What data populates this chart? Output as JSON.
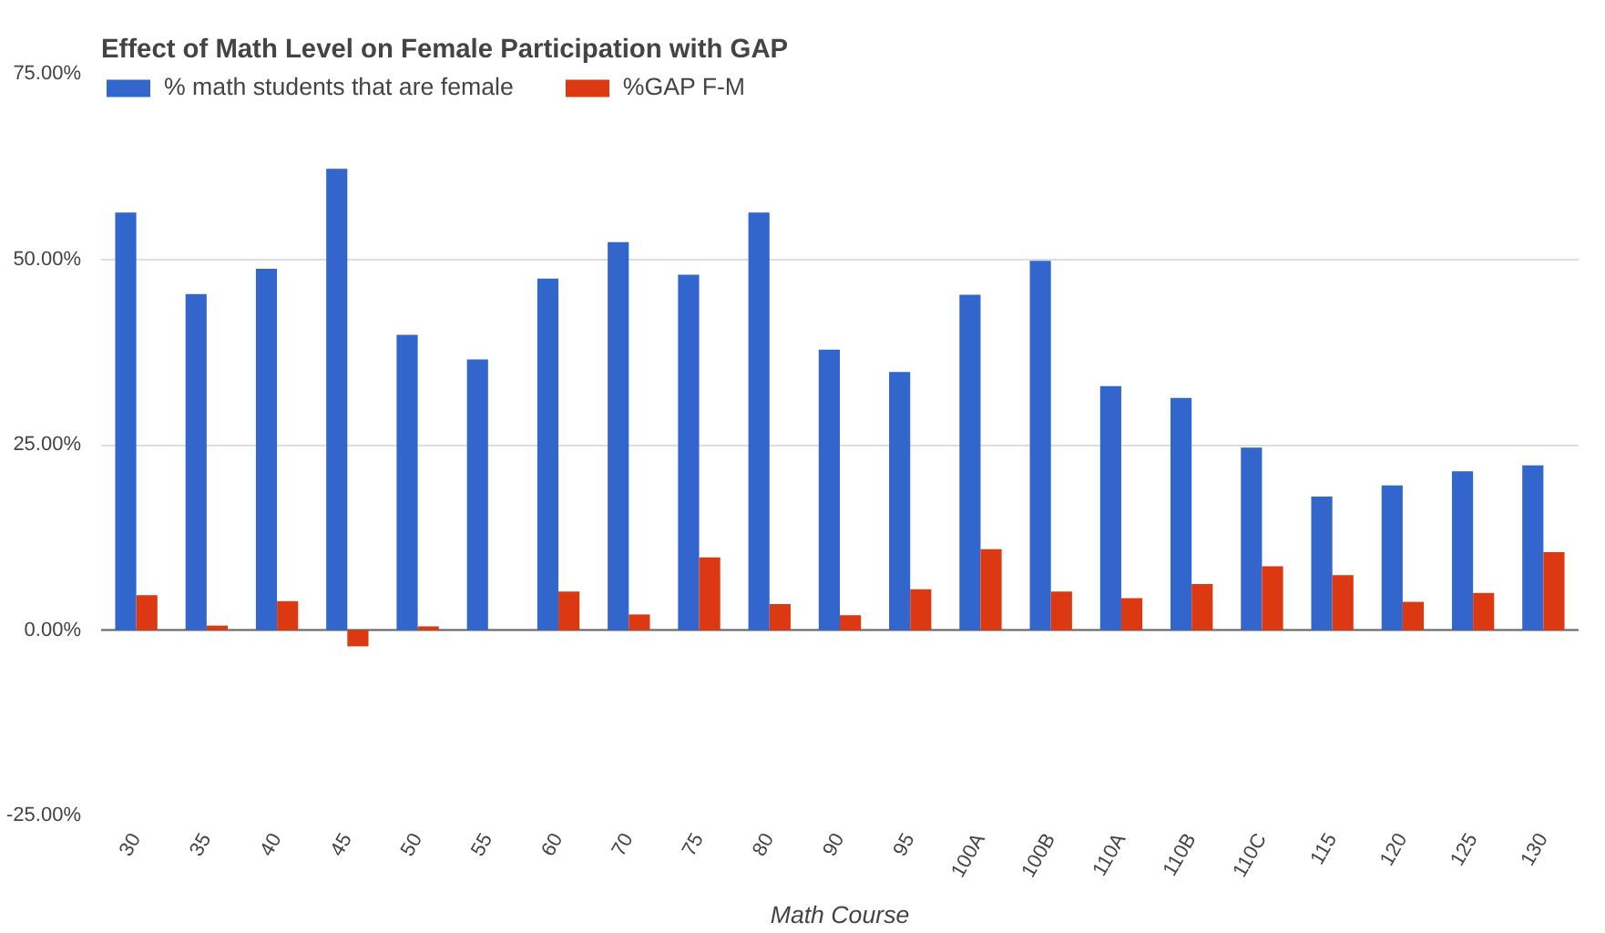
{
  "chart_data": {
    "type": "bar",
    "title": "Effect of Math Level on Female Participation with GAP",
    "xlabel": "Math Course",
    "categories": [
      "30",
      "35",
      "40",
      "45",
      "50",
      "55",
      "60",
      "70",
      "75",
      "80",
      "90",
      "95",
      "100A",
      "100B",
      "110A",
      "110B",
      "110C",
      "115",
      "120",
      "125",
      "130"
    ],
    "series": [
      {
        "name": "% math students that are female",
        "color": "#3366cc",
        "values": [
          56.3,
          45.3,
          48.7,
          62.2,
          39.8,
          36.5,
          47.4,
          52.3,
          47.9,
          56.3,
          37.8,
          34.8,
          45.2,
          49.8,
          32.9,
          31.3,
          24.6,
          18.0,
          19.5,
          21.4,
          22.2
        ]
      },
      {
        "name": "%GAP F-M",
        "color": "#dc3912",
        "values": [
          4.7,
          0.6,
          3.9,
          -2.2,
          0.5,
          0,
          5.2,
          2.1,
          9.8,
          3.5,
          2.0,
          5.5,
          10.9,
          5.2,
          4.3,
          6.2,
          8.6,
          7.4,
          3.8,
          5.0,
          10.5
        ]
      }
    ],
    "ylim": [
      -25,
      75
    ],
    "yticks": [
      {
        "value": -25,
        "label": "-25.00%"
      },
      {
        "value": 0,
        "label": "0.00%"
      },
      {
        "value": 25,
        "label": "25.00%"
      },
      {
        "value": 50,
        "label": "50.00%"
      },
      {
        "value": 75,
        "label": "75.00%"
      }
    ],
    "grid": "y",
    "legend": "top left"
  }
}
